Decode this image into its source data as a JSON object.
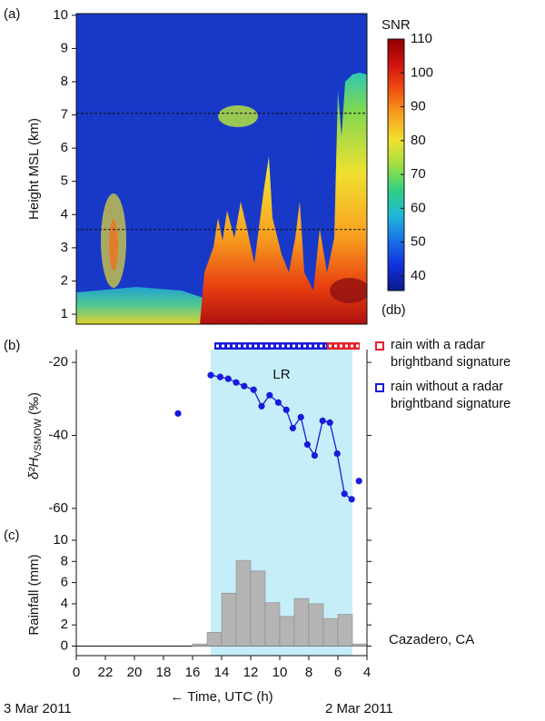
{
  "chart_data": [
    {
      "type": "heatmap",
      "panel_label": "(a)",
      "ylabel": "Height MSL (km)",
      "xlim": [
        24,
        4
      ],
      "ylim": [
        0.7,
        10.05
      ],
      "yticks": [
        1,
        2,
        3,
        4,
        5,
        6,
        7,
        8,
        9,
        10
      ],
      "reference_lines": [
        7.05,
        3.55
      ],
      "colorbar": {
        "title": "SNR",
        "unit": "(db)",
        "clim": [
          35.7,
          110
        ],
        "ticks": [
          40,
          50,
          60,
          70,
          80,
          90,
          100,
          110
        ],
        "colors": [
          "#0a1a8c",
          "#1030d8",
          "#1a70e8",
          "#20b8d8",
          "#30d080",
          "#a0e040",
          "#f0e030",
          "#f8a020",
          "#f05010",
          "#d01010",
          "#900000"
        ]
      }
    },
    {
      "type": "line",
      "panel_label": "(b)",
      "ylabel": "δ²H",
      "ylabel_subscript": "VSMOW",
      "ylabel_unit": "(‰)",
      "xlim": [
        24,
        4
      ],
      "ylim": [
        -67,
        -16.5
      ],
      "yticks": [
        -20,
        -40,
        -60
      ],
      "color": "#1a1adc",
      "x": [
        17,
        null,
        14.75,
        14.1,
        13.55,
        13.0,
        12.45,
        11.8,
        11.25,
        10.7,
        10.1,
        9.55,
        9.1,
        8.55,
        8.1,
        7.6,
        7.05,
        6.55,
        6.05,
        5.55,
        5.05,
        null,
        4.55
      ],
      "values": [
        -34,
        null,
        -23.5,
        -24,
        -24.5,
        -25.5,
        -26.5,
        -27.5,
        -32,
        -29,
        -31,
        -33,
        -38,
        -35,
        -42.5,
        -45.5,
        -36,
        -36.5,
        -45,
        -56,
        -57.5,
        null,
        -52.5
      ],
      "shaded_region": {
        "x": [
          14.75,
          5.0
        ],
        "label": "LR",
        "color": "#c5eef8"
      },
      "rain_types": [
        {
          "name": "rain with a radar brightband signature",
          "color": "#e8202a",
          "x": [
            6.75,
            4.5
          ]
        },
        {
          "name": "rain without a radar brightband signature",
          "color": "#1a1adc",
          "x": [
            14.5,
            6.75
          ]
        }
      ]
    },
    {
      "type": "histogram",
      "panel_label": "(c)",
      "ylabel": "Rainfall (mm)",
      "annotation": "Cazadero, CA",
      "xlabel": "← Time, UTC (h)",
      "date_labels": [
        "3 Mar 2011",
        "2 Mar 2011"
      ],
      "xlim": [
        24,
        4
      ],
      "ylim": [
        -0.9,
        10.6
      ],
      "yticks": [
        0,
        2,
        4,
        6,
        8,
        10
      ],
      "xticks": [
        {
          "value": 24,
          "label": "0"
        },
        22,
        20,
        18,
        16,
        14,
        12,
        10,
        8,
        6,
        4
      ],
      "bins": [
        16,
        15,
        14,
        13,
        12,
        11,
        10,
        9,
        8,
        7,
        6,
        5,
        4
      ],
      "values": [
        0.2,
        1.3,
        5.0,
        8.1,
        7.1,
        4.1,
        2.8,
        4.5,
        4.0,
        2.6,
        3.0,
        0.2
      ],
      "color": "#b4b4b4"
    }
  ]
}
